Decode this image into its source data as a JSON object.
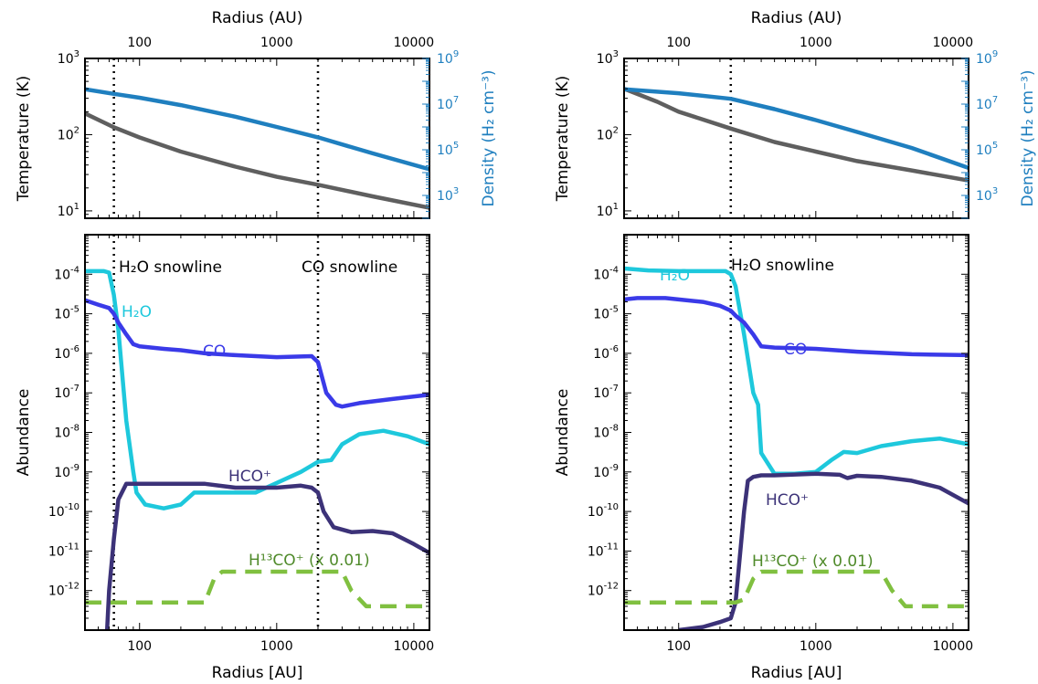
{
  "chart_data": [
    {
      "type": "line",
      "panel": "left-top",
      "top_xlabel": "Radius (AU)",
      "top_xticks": [
        "100",
        "1000",
        "10000"
      ],
      "xlim": [
        40,
        13000
      ],
      "xscale": "log",
      "ylabel": "Temperature (K)",
      "ylim": [
        8,
        1000
      ],
      "yscale": "log",
      "yticks": [
        {
          "value": 10,
          "base": "10",
          "exp": "1"
        },
        {
          "value": 100,
          "base": "10",
          "exp": "2"
        },
        {
          "value": 1000,
          "base": "10",
          "exp": "3"
        }
      ],
      "ylabel_right": "Density (H₂ cm⁻³)",
      "ylim_right": [
        100,
        1000000000
      ],
      "yticks_right": [
        {
          "value": 1000,
          "base": "10",
          "exp": "3"
        },
        {
          "value": 100000,
          "base": "10",
          "exp": "5"
        },
        {
          "value": 10000000,
          "base": "10",
          "exp": "7"
        },
        {
          "value": 1000000000,
          "base": "10",
          "exp": "9"
        }
      ],
      "series": [
        {
          "axis": "left",
          "color": "#5f5f5f",
          "x": [
            40,
            65,
            100,
            200,
            500,
            1000,
            2000,
            5000,
            13000
          ],
          "y": [
            190,
            125,
            92,
            60,
            38,
            28,
            22,
            15.5,
            11
          ]
        },
        {
          "axis": "right",
          "color": "#1f7fbf",
          "x": [
            40,
            65,
            100,
            200,
            500,
            1000,
            2000,
            5000,
            13000
          ],
          "y": [
            45000000,
            28000000,
            19000000,
            9000000,
            2800000,
            1000000,
            350000,
            70000,
            14000
          ]
        }
      ],
      "vlines": [
        65,
        2000
      ],
      "grid": false
    },
    {
      "type": "line",
      "panel": "left-bottom",
      "xlabel": "Radius [AU]",
      "xticks": [
        "100",
        "1000",
        "10000"
      ],
      "xlim": [
        40,
        13000
      ],
      "xscale": "log",
      "ylabel": "Abundance",
      "ylim": [
        1e-13,
        0.001
      ],
      "yscale": "log",
      "yticks": [
        {
          "value": 0.0001,
          "base": "10",
          "exp": "-4"
        },
        {
          "value": 1e-05,
          "base": "10",
          "exp": "-5"
        },
        {
          "value": 1e-06,
          "base": "10",
          "exp": "-6"
        },
        {
          "value": 1e-07,
          "base": "10",
          "exp": "-7"
        },
        {
          "value": 1e-08,
          "base": "10",
          "exp": "-8"
        },
        {
          "value": 1e-09,
          "base": "10",
          "exp": "-9"
        },
        {
          "value": 1e-10,
          "base": "10",
          "exp": "-10"
        },
        {
          "value": 1e-11,
          "base": "10",
          "exp": "-11"
        },
        {
          "value": 1e-12,
          "base": "10",
          "exp": "-12"
        }
      ],
      "series": [
        {
          "color": "#1ec8dc",
          "x": [
            40,
            55,
            60,
            65,
            70,
            80,
            90,
            95,
            110,
            150,
            200,
            250,
            400,
            700,
            1500,
            2000,
            2500,
            3000,
            4000,
            6000,
            9000,
            13000
          ],
          "y": [
            0.00012,
            0.00012,
            0.00011,
            3e-05,
            4e-06,
            2e-08,
            1e-09,
            3e-10,
            1.5e-10,
            1.2e-10,
            1.5e-10,
            3e-10,
            3e-10,
            3e-10,
            1e-09,
            1.8e-09,
            2e-09,
            5e-09,
            9e-09,
            1.1e-08,
            8e-09,
            5e-09
          ]
        },
        {
          "color": "#3a3ae8",
          "x": [
            40,
            50,
            60,
            65,
            70,
            80,
            90,
            100,
            150,
            200,
            300,
            500,
            1000,
            1800,
            2000,
            2300,
            2700,
            3000,
            4000,
            7000,
            13000
          ],
          "y": [
            2.2e-05,
            1.7e-05,
            1.4e-05,
            1e-05,
            6e-06,
            3e-06,
            1.7e-06,
            1.5e-06,
            1.3e-06,
            1.2e-06,
            1e-06,
            9e-07,
            8e-07,
            8.5e-07,
            6e-07,
            1e-07,
            5e-08,
            4.5e-08,
            5.5e-08,
            7e-08,
            9e-08
          ]
        },
        {
          "color": "#3c3278",
          "x": [
            58,
            60,
            65,
            70,
            80,
            90,
            100,
            150,
            200,
            300,
            500,
            1000,
            1500,
            1800,
            2000,
            2200,
            2600,
            3500,
            5000,
            7000,
            10000,
            13000
          ],
          "y": [
            1e-13,
            1e-12,
            2e-11,
            2e-10,
            5e-10,
            5e-10,
            5e-10,
            5e-10,
            5e-10,
            5e-10,
            4e-10,
            4e-10,
            4.5e-10,
            4e-10,
            3e-10,
            1e-10,
            4e-11,
            3e-11,
            3.2e-11,
            2.8e-11,
            1.5e-11,
            9e-12
          ]
        },
        {
          "color": "#80c040",
          "dash": true,
          "x": [
            40,
            300,
            350,
            400,
            1000,
            3000,
            3500,
            4500,
            13000
          ],
          "y": [
            5e-13,
            5e-13,
            2e-12,
            3e-12,
            3e-12,
            3e-12,
            1e-12,
            4e-13,
            4e-13
          ]
        }
      ],
      "labels": [
        {
          "text": "H₂O snowline",
          "color": "#000000"
        },
        {
          "text": "CO snowline",
          "color": "#000000"
        },
        {
          "text": "H₂O",
          "color": "#1ec8dc"
        },
        {
          "text": "CO",
          "color": "#3a3ae8"
        },
        {
          "text": "HCO⁺",
          "color": "#3c3278"
        },
        {
          "text": "H¹³CO⁺ (x 0.01)",
          "color": "#4f8a2a"
        }
      ],
      "vlines": [
        65,
        2000
      ],
      "grid": false
    },
    {
      "type": "line",
      "panel": "right-top",
      "top_xlabel": "Radius (AU)",
      "top_xticks": [
        "100",
        "1000",
        "10000"
      ],
      "xlim": [
        40,
        13000
      ],
      "xscale": "log",
      "ylabel": "Temperature (K)",
      "ylim": [
        8,
        1000
      ],
      "yscale": "log",
      "yticks": [
        {
          "value": 10,
          "base": "10",
          "exp": "1"
        },
        {
          "value": 100,
          "base": "10",
          "exp": "2"
        },
        {
          "value": 1000,
          "base": "10",
          "exp": "3"
        }
      ],
      "ylabel_right": "Density (H₂ cm⁻³)",
      "ylim_right": [
        100,
        1000000000
      ],
      "yticks_right": [
        {
          "value": 1000,
          "base": "10",
          "exp": "3"
        },
        {
          "value": 100000,
          "base": "10",
          "exp": "5"
        },
        {
          "value": 10000000,
          "base": "10",
          "exp": "7"
        },
        {
          "value": 1000000000,
          "base": "10",
          "exp": "9"
        }
      ],
      "series": [
        {
          "axis": "left",
          "color": "#5f5f5f",
          "x": [
            40,
            70,
            100,
            240,
            500,
            1000,
            2000,
            5000,
            13000
          ],
          "y": [
            400,
            270,
            200,
            120,
            80,
            60,
            45,
            34,
            25
          ]
        },
        {
          "axis": "right",
          "color": "#1f7fbf",
          "x": [
            40,
            100,
            240,
            500,
            1000,
            2000,
            5000,
            13000
          ],
          "y": [
            45000000,
            30000000,
            17000000,
            6000000,
            2000000,
            600000,
            120000,
            16000
          ]
        }
      ],
      "vlines": [
        240
      ],
      "grid": false
    },
    {
      "type": "line",
      "panel": "right-bottom",
      "xlabel": "Radius [AU]",
      "xticks": [
        "100",
        "1000",
        "10000"
      ],
      "xlim": [
        40,
        13000
      ],
      "xscale": "log",
      "ylabel": "Abundance",
      "ylim": [
        1e-13,
        0.001
      ],
      "yscale": "log",
      "yticks": [
        {
          "value": 0.0001,
          "base": "10",
          "exp": "-4"
        },
        {
          "value": 1e-05,
          "base": "10",
          "exp": "-5"
        },
        {
          "value": 1e-06,
          "base": "10",
          "exp": "-6"
        },
        {
          "value": 1e-07,
          "base": "10",
          "exp": "-7"
        },
        {
          "value": 1e-08,
          "base": "10",
          "exp": "-8"
        },
        {
          "value": 1e-09,
          "base": "10",
          "exp": "-9"
        },
        {
          "value": 1e-10,
          "base": "10",
          "exp": "-10"
        },
        {
          "value": 1e-11,
          "base": "10",
          "exp": "-11"
        },
        {
          "value": 1e-12,
          "base": "10",
          "exp": "-12"
        }
      ],
      "series": [
        {
          "color": "#1ec8dc",
          "x": [
            40,
            60,
            100,
            200,
            220,
            240,
            260,
            300,
            350,
            380,
            400,
            500,
            700,
            1000,
            1300,
            1600,
            2000,
            3000,
            5000,
            8000,
            13000
          ],
          "y": [
            0.00014,
            0.000125,
            0.00012,
            0.00012,
            0.00012,
            0.0001,
            5e-05,
            3e-06,
            1e-07,
            5e-08,
            3e-09,
            9e-10,
            9e-10,
            1e-09,
            2e-09,
            3.2e-09,
            3e-09,
            4.5e-09,
            6e-09,
            7e-09,
            5e-09
          ]
        },
        {
          "color": "#3a3ae8",
          "x": [
            40,
            50,
            80,
            150,
            200,
            240,
            260,
            300,
            350,
            400,
            500,
            1000,
            2000,
            5000,
            13000
          ],
          "y": [
            2.3e-05,
            2.5e-05,
            2.5e-05,
            2e-05,
            1.6e-05,
            1.2e-05,
            9e-06,
            6e-06,
            3e-06,
            1.5e-06,
            1.4e-06,
            1.3e-06,
            1.1e-06,
            9.5e-07,
            9e-07
          ]
        },
        {
          "color": "#3c3278",
          "x": [
            100,
            150,
            200,
            240,
            260,
            300,
            320,
            350,
            400,
            500,
            1000,
            1500,
            1700,
            2000,
            3000,
            5000,
            8000,
            13000
          ],
          "y": [
            1e-13,
            1.2e-13,
            1.6e-13,
            2e-13,
            5e-13,
            1e-10,
            6e-10,
            7.5e-10,
            8.2e-10,
            8.2e-10,
            9e-10,
            8.5e-10,
            7e-10,
            8e-10,
            7.5e-10,
            6e-10,
            4e-10,
            1.6e-10
          ]
        },
        {
          "color": "#80c040",
          "dash": true,
          "x": [
            40,
            260,
            300,
            350,
            400,
            1000,
            3000,
            3600,
            4500,
            13000
          ],
          "y": [
            5e-13,
            5e-13,
            6e-13,
            2e-12,
            3e-12,
            3e-12,
            3e-12,
            1e-12,
            4e-13,
            4e-13
          ]
        }
      ],
      "labels": [
        {
          "text": "H₂O snowline",
          "color": "#000000"
        },
        {
          "text": "H₂O",
          "color": "#1ec8dc"
        },
        {
          "text": "CO",
          "color": "#3a3ae8"
        },
        {
          "text": "HCO⁺",
          "color": "#3c3278"
        },
        {
          "text": "H¹³CO⁺ (x 0.01)",
          "color": "#4f8a2a"
        }
      ],
      "vlines": [
        240
      ],
      "grid": false
    }
  ]
}
